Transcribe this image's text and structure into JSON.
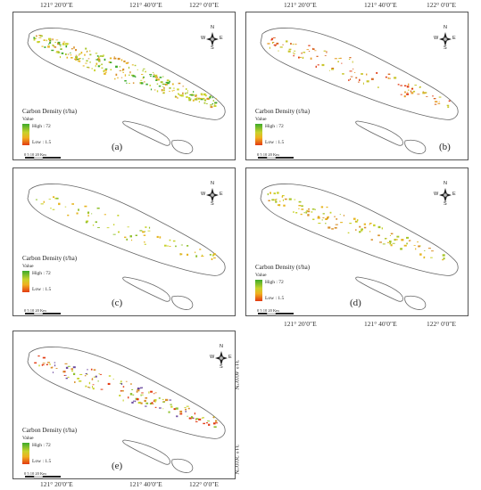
{
  "coordinates": {
    "lon_121_20": "121° 20′0″E",
    "lon_121_40": "121° 40′0″E",
    "lon_122_0": "122° 0′0″E",
    "lat_31_40": "31° 40′0″N",
    "lat_31_20": "31° 20′0″N"
  },
  "legend": {
    "title": "Carbon Density (t/ha)",
    "value_label": "Value",
    "high": "High : 72",
    "low": "Low : 1.5",
    "colors": [
      "#3daa2a",
      "#c8d22c",
      "#f0b020",
      "#e23a12"
    ]
  },
  "scale": {
    "labels": "0  5  10      20 Km"
  },
  "compass": {
    "n": "N",
    "s": "S",
    "e": "E",
    "w": "W"
  },
  "panels": [
    {
      "label": "(a)"
    },
    {
      "label": "(b)"
    },
    {
      "label": "(c)"
    },
    {
      "label": "(d)"
    },
    {
      "label": "(e)"
    }
  ]
}
